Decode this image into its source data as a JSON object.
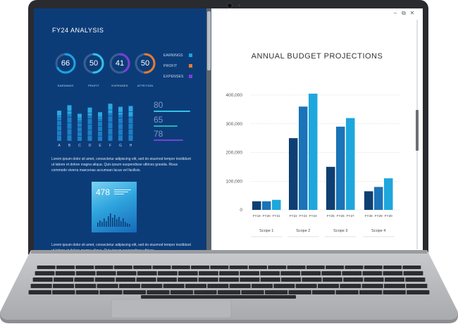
{
  "left_panel": {
    "title": "FY24 ANALYSIS",
    "gauges": [
      {
        "value": "66",
        "label": "EARNINGS",
        "fraction": 0.66,
        "color": "#1aa3e0"
      },
      {
        "value": "50",
        "label": "PROFIT",
        "fraction": 0.5,
        "color": "#2fc3ea"
      },
      {
        "value": "41",
        "label": "EXPENSES",
        "fraction": 0.41,
        "color": "#7a3fd6"
      },
      {
        "value": "50",
        "label": "ATTRITION",
        "fraction": 0.5,
        "color": "#e87a2e"
      }
    ],
    "legend": [
      {
        "label": "EARNINGS",
        "color": "#1aa3e0"
      },
      {
        "label": "PROFIT",
        "color": "#e87a2e"
      },
      {
        "label": "EXPENSES",
        "color": "#7a3fd6"
      }
    ],
    "mini_bars": {
      "categories": [
        "A",
        "B",
        "C",
        "D",
        "E",
        "F",
        "G",
        "H"
      ],
      "values": [
        [
          0.78,
          0.62
        ],
        [
          0.92,
          0.7
        ],
        [
          0.7,
          0.55
        ],
        [
          0.86,
          0.66
        ],
        [
          0.74,
          0.58
        ],
        [
          0.96,
          0.72
        ],
        [
          0.88,
          0.68
        ],
        [
          0.9,
          0.64
        ]
      ]
    },
    "stats": [
      {
        "value": "80",
        "color": "#2fc3ea"
      },
      {
        "value": "65",
        "color": "#26b0b9"
      },
      {
        "value": "78",
        "color": "#7a3fd6"
      }
    ],
    "lorem_1": "Lorem ipsum dolor sit amet, consectetur adipiscing elit, sed do eiusmod tempor incididunt ut labore et dolore magna aliqua. Quis ipsum suspendisse ultrices gravida. Risus commodo viverra maecenas accumsan lacus vel facilisis.",
    "card_value": "478",
    "lorem_2": "Lorem ipsum dolor sit amet, consectetur adipiscing elit, sed do eiusmod tempor incididunt ut labore et dolore magna aliqua. Quis ipsum suspendisse ultrices"
  },
  "chart_data": {
    "type": "bar",
    "title": "ANNUAL BUDGET PROJECTIONS",
    "groups": [
      {
        "name": "Scope 1",
        "labels": [
          "FY19",
          "FY20",
          "FY21"
        ],
        "values": [
          30000,
          30000,
          35000
        ]
      },
      {
        "name": "Scope 2",
        "labels": [
          "FY22",
          "FY23",
          "FY24"
        ],
        "values": [
          250000,
          360000,
          405000
        ]
      },
      {
        "name": "Scope 3",
        "labels": [
          "FY25",
          "FY26",
          "FY27"
        ],
        "values": [
          150000,
          290000,
          320000
        ]
      },
      {
        "name": "Scope 4",
        "labels": [
          "FY28",
          "FY29",
          "FY30"
        ],
        "values": [
          65000,
          80000,
          110000
        ]
      }
    ],
    "y_ticks": [
      "400,000",
      "300,000",
      "200,000",
      "100,000",
      "0"
    ],
    "ylim": [
      0,
      400000
    ],
    "grid": true,
    "colors": [
      "#0f3f72",
      "#1b73b8",
      "#1ea7dc"
    ]
  }
}
